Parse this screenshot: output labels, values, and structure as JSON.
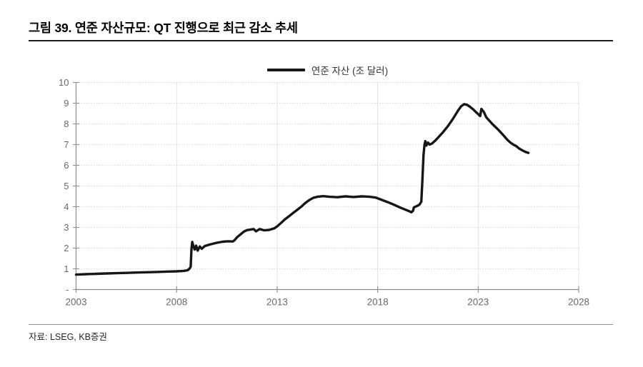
{
  "figure": {
    "title": "그림 39. 연준 자산규모: QT 진행으로 최근 감소 추세",
    "source": "자료: LSEG, KB증권"
  },
  "colors": {
    "series": "#161616",
    "axis": "#8c8c8c",
    "tick_label": "#696969",
    "grid_horizontal": "#c9c9c9",
    "grid_vertical": "#e3e3e3",
    "title": "#000000",
    "rule_top": "#1a1a1a",
    "rule_bottom": "#8f8f8f",
    "source": "#262626"
  },
  "chart_data": {
    "type": "line",
    "title": "그림 39. 연준 자산규모: QT 진행으로 최근 감소 추세",
    "xlabel": "",
    "ylabel": "",
    "xlim": [
      2003,
      2028
    ],
    "ylim": [
      0,
      10
    ],
    "x_ticks": [
      2003,
      2008,
      2013,
      2018,
      2023,
      2028
    ],
    "x_tick_labels": [
      "2003",
      "2008",
      "2013",
      "2018",
      "2023",
      "2028"
    ],
    "y_ticks": [
      0,
      1,
      2,
      3,
      4,
      5,
      6,
      7,
      8,
      9,
      10
    ],
    "y_tick_labels": [
      "-",
      "1",
      "2",
      "3",
      "4",
      "5",
      "6",
      "7",
      "8",
      "9",
      "10"
    ],
    "grid": "horizontal dotted + vertical light at ticks",
    "legend_position": "top-center",
    "series": [
      {
        "name": "연준 자산 (조 달러)",
        "color": "#161616",
        "points": [
          [
            2003.0,
            0.72
          ],
          [
            2003.5,
            0.74
          ],
          [
            2004.0,
            0.76
          ],
          [
            2004.5,
            0.775
          ],
          [
            2005.0,
            0.79
          ],
          [
            2005.5,
            0.805
          ],
          [
            2006.0,
            0.82
          ],
          [
            2006.5,
            0.835
          ],
          [
            2007.0,
            0.85
          ],
          [
            2007.5,
            0.865
          ],
          [
            2008.0,
            0.88
          ],
          [
            2008.35,
            0.9
          ],
          [
            2008.55,
            0.93
          ],
          [
            2008.65,
            1.02
          ],
          [
            2008.7,
            1.1
          ],
          [
            2008.74,
            1.95
          ],
          [
            2008.78,
            2.3
          ],
          [
            2008.84,
            2.08
          ],
          [
            2008.9,
            1.93
          ],
          [
            2008.97,
            2.12
          ],
          [
            2009.05,
            1.88
          ],
          [
            2009.15,
            2.08
          ],
          [
            2009.25,
            1.97
          ],
          [
            2009.4,
            2.1
          ],
          [
            2009.6,
            2.16
          ],
          [
            2009.8,
            2.21
          ],
          [
            2010.0,
            2.26
          ],
          [
            2010.3,
            2.31
          ],
          [
            2010.55,
            2.33
          ],
          [
            2010.8,
            2.32
          ],
          [
            2010.9,
            2.4
          ],
          [
            2011.0,
            2.52
          ],
          [
            2011.2,
            2.68
          ],
          [
            2011.35,
            2.8
          ],
          [
            2011.5,
            2.87
          ],
          [
            2011.7,
            2.9
          ],
          [
            2011.83,
            2.92
          ],
          [
            2011.95,
            2.81
          ],
          [
            2012.13,
            2.92
          ],
          [
            2012.36,
            2.86
          ],
          [
            2012.6,
            2.88
          ],
          [
            2012.85,
            2.95
          ],
          [
            2013.0,
            3.05
          ],
          [
            2013.2,
            3.22
          ],
          [
            2013.4,
            3.4
          ],
          [
            2013.6,
            3.55
          ],
          [
            2013.8,
            3.7
          ],
          [
            2014.0,
            3.85
          ],
          [
            2014.2,
            4.0
          ],
          [
            2014.4,
            4.18
          ],
          [
            2014.6,
            4.32
          ],
          [
            2014.8,
            4.43
          ],
          [
            2015.0,
            4.48
          ],
          [
            2015.3,
            4.51
          ],
          [
            2015.6,
            4.48
          ],
          [
            2016.0,
            4.46
          ],
          [
            2016.4,
            4.5
          ],
          [
            2016.8,
            4.47
          ],
          [
            2017.2,
            4.5
          ],
          [
            2017.6,
            4.48
          ],
          [
            2017.9,
            4.44
          ],
          [
            2018.2,
            4.33
          ],
          [
            2018.5,
            4.22
          ],
          [
            2018.8,
            4.1
          ],
          [
            2019.1,
            3.97
          ],
          [
            2019.35,
            3.87
          ],
          [
            2019.55,
            3.79
          ],
          [
            2019.68,
            3.73
          ],
          [
            2019.76,
            3.8
          ],
          [
            2019.8,
            3.97
          ],
          [
            2019.95,
            4.03
          ],
          [
            2020.08,
            4.1
          ],
          [
            2020.17,
            4.24
          ],
          [
            2020.22,
            5.2
          ],
          [
            2020.28,
            6.5
          ],
          [
            2020.33,
            7.0
          ],
          [
            2020.37,
            7.17
          ],
          [
            2020.42,
            6.95
          ],
          [
            2020.5,
            7.1
          ],
          [
            2020.58,
            7.0
          ],
          [
            2020.7,
            7.05
          ],
          [
            2020.85,
            7.18
          ],
          [
            2021.0,
            7.33
          ],
          [
            2021.25,
            7.6
          ],
          [
            2021.5,
            7.9
          ],
          [
            2021.75,
            8.25
          ],
          [
            2022.0,
            8.65
          ],
          [
            2022.15,
            8.85
          ],
          [
            2022.3,
            8.95
          ],
          [
            2022.45,
            8.92
          ],
          [
            2022.6,
            8.82
          ],
          [
            2022.75,
            8.7
          ],
          [
            2022.9,
            8.56
          ],
          [
            2023.02,
            8.45
          ],
          [
            2023.1,
            8.38
          ],
          [
            2023.16,
            8.72
          ],
          [
            2023.28,
            8.58
          ],
          [
            2023.4,
            8.32
          ],
          [
            2023.55,
            8.16
          ],
          [
            2023.7,
            8.0
          ],
          [
            2023.85,
            7.86
          ],
          [
            2024.0,
            7.72
          ],
          [
            2024.15,
            7.56
          ],
          [
            2024.3,
            7.4
          ],
          [
            2024.45,
            7.23
          ],
          [
            2024.6,
            7.1
          ],
          [
            2024.75,
            7.0
          ],
          [
            2024.9,
            6.92
          ],
          [
            2025.05,
            6.8
          ],
          [
            2025.2,
            6.72
          ],
          [
            2025.35,
            6.65
          ],
          [
            2025.5,
            6.6
          ]
        ]
      }
    ]
  }
}
